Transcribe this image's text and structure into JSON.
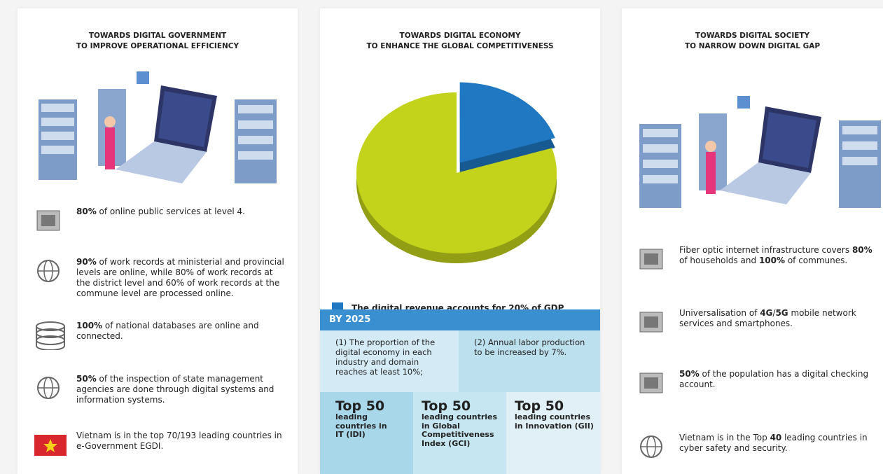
{
  "columns": [
    {
      "title": [
        "TOWARDS DIGITAL GOVERNMENT",
        "TO IMPROVE OPERATIONAL EFFICIENCY"
      ],
      "items": [
        {
          "segments": [
            {
              "text": "80%",
              "bold": true
            },
            {
              "text": " of online public services at level 4."
            }
          ]
        },
        {
          "segments": [
            {
              "text": "90%",
              "bold": true
            },
            {
              "text": " of work records at ministerial and provincial levels are online, while 80% of work records at the district level and 60% of work records at the commune level are processed online."
            }
          ]
        },
        {
          "segments": [
            {
              "text": "100%",
              "bold": true
            },
            {
              "text": " of national databases are online and connected."
            }
          ]
        },
        {
          "segments": [
            {
              "text": "50%",
              "bold": true
            },
            {
              "text": " of the inspection of state management agencies are done through digital systems and information systems."
            }
          ]
        },
        {
          "segments": [
            {
              "text": "Vietnam is in the top 70/193 leading countries in e-Government EGDI."
            }
          ]
        }
      ]
    },
    {
      "title": [
        "TOWARDS DIGITAL ECONOMY",
        "TO ENHANCE THE GLOBAL COMPETITIVENESS"
      ]
    },
    {
      "title": [
        "TOWARDS DIGITAL SOCIETY",
        "TO NARROW DOWN DIGITAL GAP"
      ],
      "items": [
        {
          "segments": [
            {
              "text": "Fiber optic internet infrastructure covers "
            },
            {
              "text": "80%",
              "bold": true
            },
            {
              "text": " of households and "
            },
            {
              "text": "100%",
              "bold": true
            },
            {
              "text": " of communes."
            }
          ]
        },
        {
          "segments": [
            {
              "text": "Universalisation of "
            },
            {
              "text": "4G",
              "bold": true
            },
            {
              "text": "/"
            },
            {
              "text": "5G",
              "bold": true
            },
            {
              "text": " mobile network services and smartphones."
            }
          ]
        },
        {
          "segments": [
            {
              "text": "50%",
              "bold": true
            },
            {
              "text": " of the population has a digital checking account."
            }
          ]
        },
        {
          "segments": [
            {
              "text": "Vietnam is in the Top "
            },
            {
              "text": "40",
              "bold": true
            },
            {
              "text": " leading countries in cyber safety and security."
            }
          ]
        }
      ]
    }
  ],
  "chart_data": {
    "type": "pie",
    "values": [
      20,
      80
    ],
    "colors": [
      "#1f78c1",
      "#c3d21a"
    ],
    "legend": "The digital revenue accounts for 20% of GDP"
  },
  "targets": {
    "heading": "BY 2025",
    "notes": [
      "(1) The proportion of the digital economy in each industry and domain reaches at least 10%;",
      "(2) Annual labor production to be increased by 7%."
    ],
    "tops": [
      {
        "title": "Top 50",
        "text": "leading countries in IT (IDI)"
      },
      {
        "title": "Top 50",
        "text": "leading countries in Global Competitiveness Index (GCI)"
      },
      {
        "title": "Top 50",
        "text": "leading countries in Innovation (GII)"
      }
    ]
  }
}
